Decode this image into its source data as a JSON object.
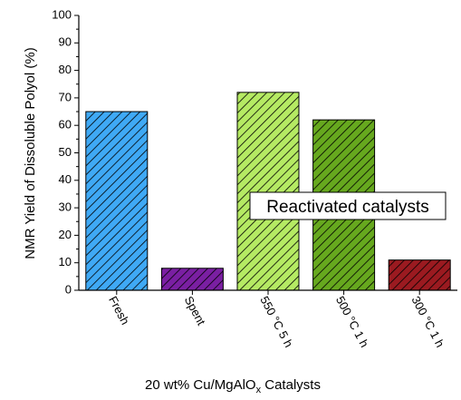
{
  "chart_data": {
    "type": "bar",
    "categories": [
      "Fresh",
      "Spent",
      "550 °C 5 h",
      "500 °C 1 h",
      "300 °C 1 h"
    ],
    "values": [
      65,
      8,
      72,
      62,
      11
    ],
    "colors": [
      "#3fa9f5",
      "#7a1fa2",
      "#b5ea63",
      "#66a81e",
      "#9b1a20"
    ],
    "pattern": "diagonal-hatch",
    "title": "",
    "xlabel_main": "20 wt% Cu/MgAlO",
    "xlabel_sub": "x",
    "xlabel_tail": " Catalysts",
    "ylabel": "NMR Yield of Dissoluble Polyol (%)",
    "ylim": [
      0,
      100
    ],
    "yticks": [
      0,
      10,
      20,
      30,
      40,
      50,
      60,
      70,
      80,
      90,
      100
    ],
    "grid": false,
    "annotation": "Reactivated catalysts"
  }
}
